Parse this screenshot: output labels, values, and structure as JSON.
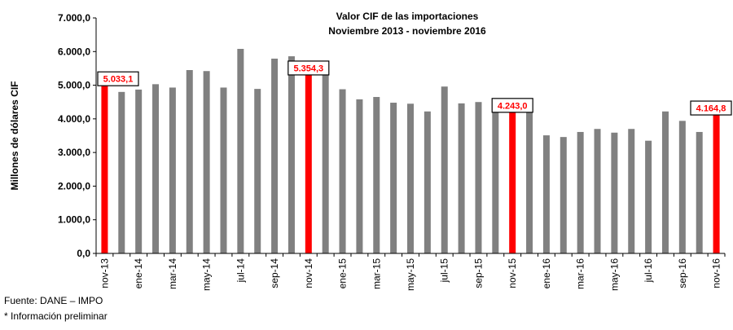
{
  "chart_data": {
    "type": "bar",
    "title": "Valor CIF de las importaciones",
    "subtitle": "Noviembre 2013 - noviembre 2016",
    "ylabel": "Millones de dólares CIF",
    "xlabel": "",
    "ylim": [
      0,
      7000
    ],
    "yticks": [
      "0,0",
      "1.000,0",
      "2.000,0",
      "3.000,0",
      "4.000,0",
      "5.000,0",
      "6.000,0",
      "7.000,0"
    ],
    "grid": false,
    "legend": "none",
    "bar_color": "#808080",
    "highlight_color": "#ff0000",
    "categories": [
      "nov-13",
      "dic-13",
      "ene-14",
      "feb-14",
      "mar-14",
      "abr-14",
      "may-14",
      "jun-14",
      "jul-14",
      "ago-14",
      "sep-14",
      "oct-14",
      "nov-14",
      "dic-14",
      "ene-15",
      "feb-15",
      "mar-15",
      "abr-15",
      "may-15",
      "jun-15",
      "jul-15",
      "ago-15",
      "sep-15",
      "oct-15",
      "nov-15",
      "dic-15",
      "ene-16",
      "feb-16",
      "mar-16",
      "abr-16",
      "may-16",
      "jun-16",
      "jul-16",
      "ago-16",
      "sep-16",
      "oct-16",
      "nov-16"
    ],
    "tick_labels": [
      "nov-13",
      "ene-14",
      "mar-14",
      "may-14",
      "jul-14",
      "sep-14",
      "nov-14",
      "ene-15",
      "mar-15",
      "may-15",
      "jul-15",
      "sep-15",
      "nov-15",
      "ene-16",
      "mar-16",
      "may-16",
      "jul-16",
      "sep-16",
      "nov-16"
    ],
    "values": [
      5033.1,
      4800,
      4870,
      5030,
      4930,
      5450,
      5420,
      4930,
      6080,
      4890,
      5790,
      5860,
      5354.3,
      5300,
      4880,
      4580,
      4650,
      4480,
      4450,
      4220,
      4960,
      4460,
      4500,
      4520,
      4243.0,
      4200,
      3510,
      3460,
      3610,
      3700,
      3590,
      3700,
      3350,
      4220,
      3940,
      3610,
      4164.8
    ],
    "highlighted": [
      0,
      12,
      24,
      36
    ],
    "data_labels": [
      {
        "index": 0,
        "text": "5.033,1"
      },
      {
        "index": 12,
        "text": "5.354,3"
      },
      {
        "index": 24,
        "text": "4.243,0"
      },
      {
        "index": 36,
        "text": "4.164,8"
      }
    ]
  },
  "footer": {
    "source": "Fuente: DANE – IMPO",
    "note": "* Información preliminar"
  }
}
